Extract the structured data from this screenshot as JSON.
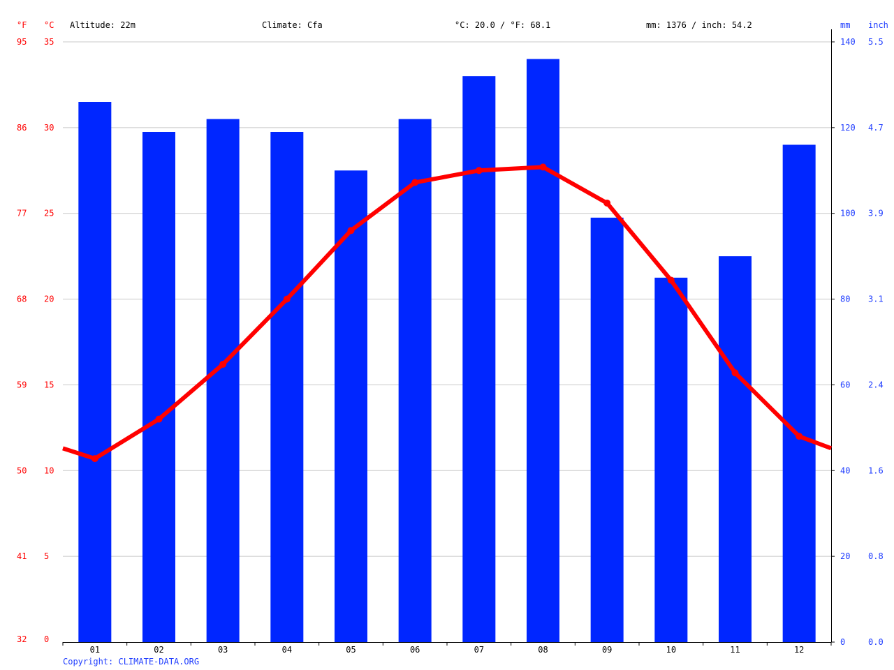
{
  "header": {
    "altitude": "Altitude: 22m",
    "climate": "Climate: Cfa",
    "avg_temp": "°C: 20.0 / °F: 68.1",
    "precip": "mm: 1376 / inch: 54.2"
  },
  "axes": {
    "fahrenheit_unit": "°F",
    "celsius_unit": "°C",
    "mm_unit": "mm",
    "inch_unit": "inch"
  },
  "copyright": "Copyright: CLIMATE-DATA.ORG",
  "colors": {
    "precip_bar": "#0026ff",
    "temp_line": "#ff0000",
    "left_axis_text": "#ff0000",
    "right_axis_text": "#1f3dff",
    "grid": "#c8c8c8"
  },
  "chart_data": {
    "type": "bar",
    "categories": [
      "01",
      "02",
      "03",
      "04",
      "05",
      "06",
      "07",
      "08",
      "09",
      "10",
      "11",
      "12"
    ],
    "series": [
      {
        "type": "bar",
        "axis": "right",
        "unit": "mm",
        "values": [
          126,
          119,
          122,
          119,
          110,
          122,
          132,
          136,
          99,
          85,
          90,
          116
        ]
      },
      {
        "type": "line",
        "axis": "left",
        "unit": "°C",
        "values": [
          10.7,
          13.0,
          16.2,
          20.0,
          24.0,
          26.8,
          27.5,
          27.7,
          25.6,
          21.1,
          15.7,
          12.0
        ],
        "edge_start": 11.3,
        "edge_end": 11.3
      }
    ],
    "y_left": {
      "label": "°C",
      "ylim": [
        0,
        35
      ],
      "ticks": [
        0,
        5,
        10,
        15,
        20,
        25,
        30,
        35
      ]
    },
    "y_left_secondary": {
      "label": "°F",
      "ticks": [
        "32",
        "41",
        "50",
        "59",
        "68",
        "77",
        "86",
        "95"
      ]
    },
    "y_right": {
      "label": "mm",
      "ylim": [
        0,
        140
      ],
      "ticks": [
        0,
        20,
        40,
        60,
        80,
        100,
        120,
        140
      ]
    },
    "y_right_secondary": {
      "label": "inch",
      "ticks": [
        "0.0",
        "0.8",
        "1.6",
        "2.4",
        "3.1",
        "3.9",
        "4.7",
        "5.5"
      ]
    },
    "grid": true
  }
}
